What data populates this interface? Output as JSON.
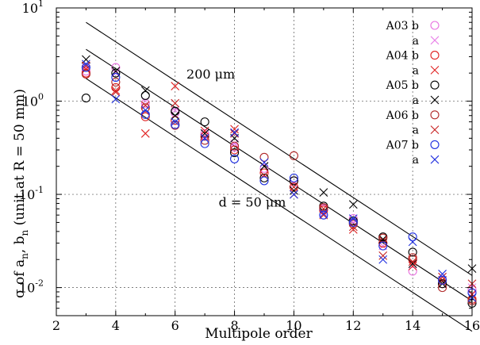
{
  "chart_data": {
    "type": "scatter",
    "xlabel": "Multipole order",
    "ylabel_parts": {
      "main": "σ of a",
      "sub1": "n",
      "mid": ", b",
      "sub2": "n",
      "rest": " (unit at R = 50 mm)"
    },
    "xlim": [
      2,
      16
    ],
    "ylim": [
      0.005,
      10
    ],
    "yscale": "log",
    "grid": "dashed",
    "legend_position": "top-right",
    "xticks": [
      2,
      4,
      6,
      8,
      10,
      12,
      14,
      16
    ],
    "xtick_labels": [
      "2",
      "4",
      "6",
      "8",
      "10",
      "12",
      "14",
      "16"
    ],
    "ytick_labels": [
      {
        "value": 10,
        "base": "10",
        "exp": "1"
      },
      {
        "value": 1,
        "base": "10",
        "exp": "0"
      },
      {
        "value": 0.1,
        "base": "10",
        "exp": "-1"
      },
      {
        "value": 0.01,
        "base": "10",
        "exp": "-2"
      }
    ],
    "annotations": [
      {
        "text": "200 μm",
        "x": 7.2,
        "y": 1.75
      },
      {
        "text": "d = 50 μm",
        "x": 8.6,
        "y": 0.074
      }
    ],
    "reference_lines": [
      {
        "x": [
          3,
          16
        ],
        "y": [
          7.0,
          0.0135
        ]
      },
      {
        "x": [
          3,
          16
        ],
        "y": [
          3.6,
          0.0072
        ]
      },
      {
        "x": [
          3,
          16
        ],
        "y": [
          1.75,
          0.0034
        ]
      }
    ],
    "series": [
      {
        "legend": "A03 b",
        "marker": "circle",
        "color": "#e870e0",
        "x": [
          3,
          4,
          5,
          6,
          7,
          8,
          9,
          10,
          11,
          12,
          13,
          14,
          15,
          16
        ],
        "y": [
          2.1,
          2.3,
          0.95,
          0.75,
          0.45,
          0.32,
          0.19,
          0.14,
          0.07,
          0.055,
          0.03,
          0.015,
          0.012,
          0.0095
        ]
      },
      {
        "legend": "a",
        "marker": "x",
        "color": "#e880e8",
        "x": [
          3,
          4,
          5,
          6,
          7,
          8,
          9,
          10,
          11,
          12,
          13,
          14,
          15,
          16
        ],
        "y": [
          2.3,
          2.0,
          1.0,
          0.8,
          0.42,
          0.35,
          0.2,
          0.13,
          0.065,
          0.05,
          0.028,
          0.018,
          0.013,
          0.01
        ]
      },
      {
        "legend": "A04 b",
        "marker": "circle",
        "color": "#e02020",
        "x": [
          3,
          4,
          5,
          6,
          7,
          8,
          9,
          10,
          11,
          12,
          13,
          14,
          15,
          16
        ],
        "y": [
          2.0,
          1.4,
          0.68,
          0.62,
          0.42,
          0.3,
          0.17,
          0.12,
          0.068,
          0.05,
          0.03,
          0.02,
          0.011,
          0.0075
        ]
      },
      {
        "legend": "a",
        "marker": "x",
        "color": "#e02020",
        "x": [
          3,
          4,
          5,
          6,
          7,
          8,
          9,
          10,
          11,
          12,
          13,
          14,
          15,
          16
        ],
        "y": [
          2.2,
          1.3,
          0.45,
          1.45,
          0.48,
          0.5,
          0.16,
          0.1,
          0.06,
          0.042,
          0.032,
          0.017,
          0.012,
          0.0085
        ]
      },
      {
        "legend": "A05 b",
        "marker": "circle",
        "color": "#000000",
        "x": [
          3,
          4,
          5,
          6,
          7,
          8,
          9,
          10,
          11,
          12,
          13,
          14,
          15,
          16
        ],
        "y": [
          1.08,
          2.0,
          1.15,
          0.78,
          0.6,
          0.28,
          0.15,
          0.14,
          0.075,
          0.052,
          0.035,
          0.024,
          0.011,
          0.0068
        ]
      },
      {
        "legend": "a",
        "marker": "x",
        "color": "#000000",
        "x": [
          3,
          4,
          5,
          6,
          7,
          8,
          9,
          10,
          11,
          12,
          13,
          14,
          15,
          16
        ],
        "y": [
          2.8,
          2.1,
          1.3,
          0.7,
          0.45,
          0.4,
          0.2,
          0.11,
          0.105,
          0.078,
          0.033,
          0.018,
          0.011,
          0.016
        ]
      },
      {
        "legend": "A06 b",
        "marker": "circle",
        "color": "#b02828",
        "x": [
          3,
          4,
          5,
          6,
          7,
          8,
          9,
          10,
          11,
          12,
          13,
          14,
          15,
          16
        ],
        "y": [
          1.95,
          1.6,
          0.85,
          0.55,
          0.38,
          0.33,
          0.25,
          0.26,
          0.072,
          0.048,
          0.034,
          0.021,
          0.01,
          0.0072
        ]
      },
      {
        "legend": "a",
        "marker": "x",
        "color": "#c82020",
        "x": [
          3,
          4,
          5,
          6,
          7,
          8,
          9,
          10,
          11,
          12,
          13,
          14,
          15,
          16
        ],
        "y": [
          2.4,
          1.25,
          0.9,
          0.95,
          0.4,
          0.45,
          0.16,
          0.12,
          0.07,
          0.045,
          0.022,
          0.019,
          0.013,
          0.011
        ]
      },
      {
        "legend": "A07 b",
        "marker": "circle",
        "color": "#2030e0",
        "x": [
          3,
          4,
          5,
          6,
          7,
          8,
          9,
          10,
          11,
          12,
          13,
          14,
          15,
          16
        ],
        "y": [
          2.3,
          1.8,
          0.72,
          0.56,
          0.35,
          0.24,
          0.14,
          0.15,
          0.06,
          0.05,
          0.028,
          0.035,
          0.012,
          0.0088
        ]
      },
      {
        "legend": "a",
        "marker": "x",
        "color": "#2030e0",
        "x": [
          3,
          4,
          5,
          6,
          7,
          8,
          9,
          10,
          11,
          12,
          13,
          14,
          15,
          16
        ],
        "y": [
          2.5,
          1.05,
          0.8,
          0.6,
          0.4,
          0.46,
          0.22,
          0.1,
          0.062,
          0.055,
          0.02,
          0.031,
          0.014,
          0.0078
        ]
      }
    ]
  }
}
